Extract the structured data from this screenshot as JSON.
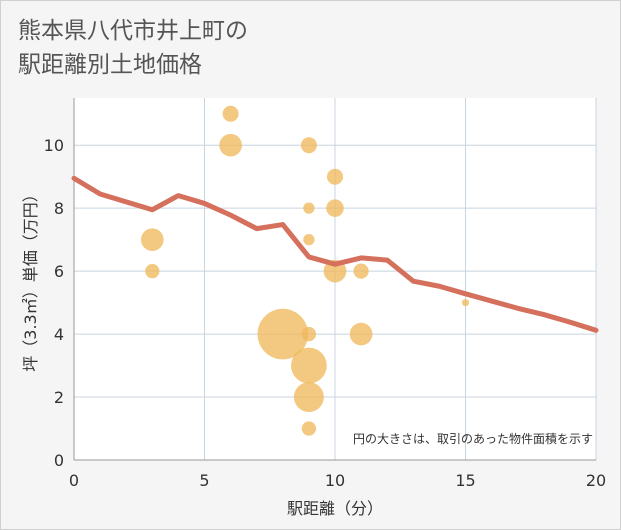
{
  "title_line1": "熊本県八代市井上町の",
  "title_line2": "駅距離別土地価格",
  "colors": {
    "bubble": "#f0b85c",
    "trend": "#d4705c",
    "grid": "#c8d4e0",
    "plot_bg": "#ffffff"
  },
  "chart_data": {
    "type": "scatter",
    "xlabel": "駅距離（分）",
    "ylabel": "坪（3.3㎡）単価（万円）",
    "xlim": [
      0,
      20
    ],
    "ylim": [
      0,
      11.5
    ],
    "x_ticks": [
      "0",
      "5",
      "10",
      "15",
      "20"
    ],
    "y_ticks": [
      "0",
      "2",
      "4",
      "6",
      "8",
      "10"
    ],
    "grid": true,
    "note": "円の大きさは、取引のあった物件面積を示す",
    "bubbles": [
      {
        "x": 6,
        "y": 11,
        "size": 1
      },
      {
        "x": 6,
        "y": 10,
        "size": 2
      },
      {
        "x": 9,
        "y": 10,
        "size": 1
      },
      {
        "x": 10,
        "y": 9,
        "size": 1
      },
      {
        "x": 9,
        "y": 8,
        "size": 0.5
      },
      {
        "x": 10,
        "y": 8,
        "size": 1.2
      },
      {
        "x": 3,
        "y": 7,
        "size": 2
      },
      {
        "x": 9,
        "y": 7,
        "size": 0.5
      },
      {
        "x": 3,
        "y": 6,
        "size": 0.8
      },
      {
        "x": 10,
        "y": 6,
        "size": 2
      },
      {
        "x": 11,
        "y": 6,
        "size": 0.9
      },
      {
        "x": 15,
        "y": 5,
        "size": 0.2
      },
      {
        "x": 8,
        "y": 4,
        "size": 10
      },
      {
        "x": 9,
        "y": 4,
        "size": 0.8
      },
      {
        "x": 11,
        "y": 4,
        "size": 2
      },
      {
        "x": 9,
        "y": 3,
        "size": 5
      },
      {
        "x": 9,
        "y": 2,
        "size": 3.5
      },
      {
        "x": 9,
        "y": 1,
        "size": 0.8
      }
    ],
    "trend": {
      "x": [
        0,
        1,
        2,
        3,
        4,
        5,
        6,
        7,
        8,
        9,
        10,
        11,
        12,
        13,
        14,
        15,
        16,
        17,
        18,
        19,
        20
      ],
      "y": [
        8.95,
        8.45,
        8.2,
        7.95,
        8.4,
        8.15,
        7.78,
        7.35,
        7.48,
        6.45,
        6.22,
        6.42,
        6.35,
        5.68,
        5.52,
        5.28,
        5.05,
        4.82,
        4.62,
        4.38,
        4.12
      ]
    }
  }
}
